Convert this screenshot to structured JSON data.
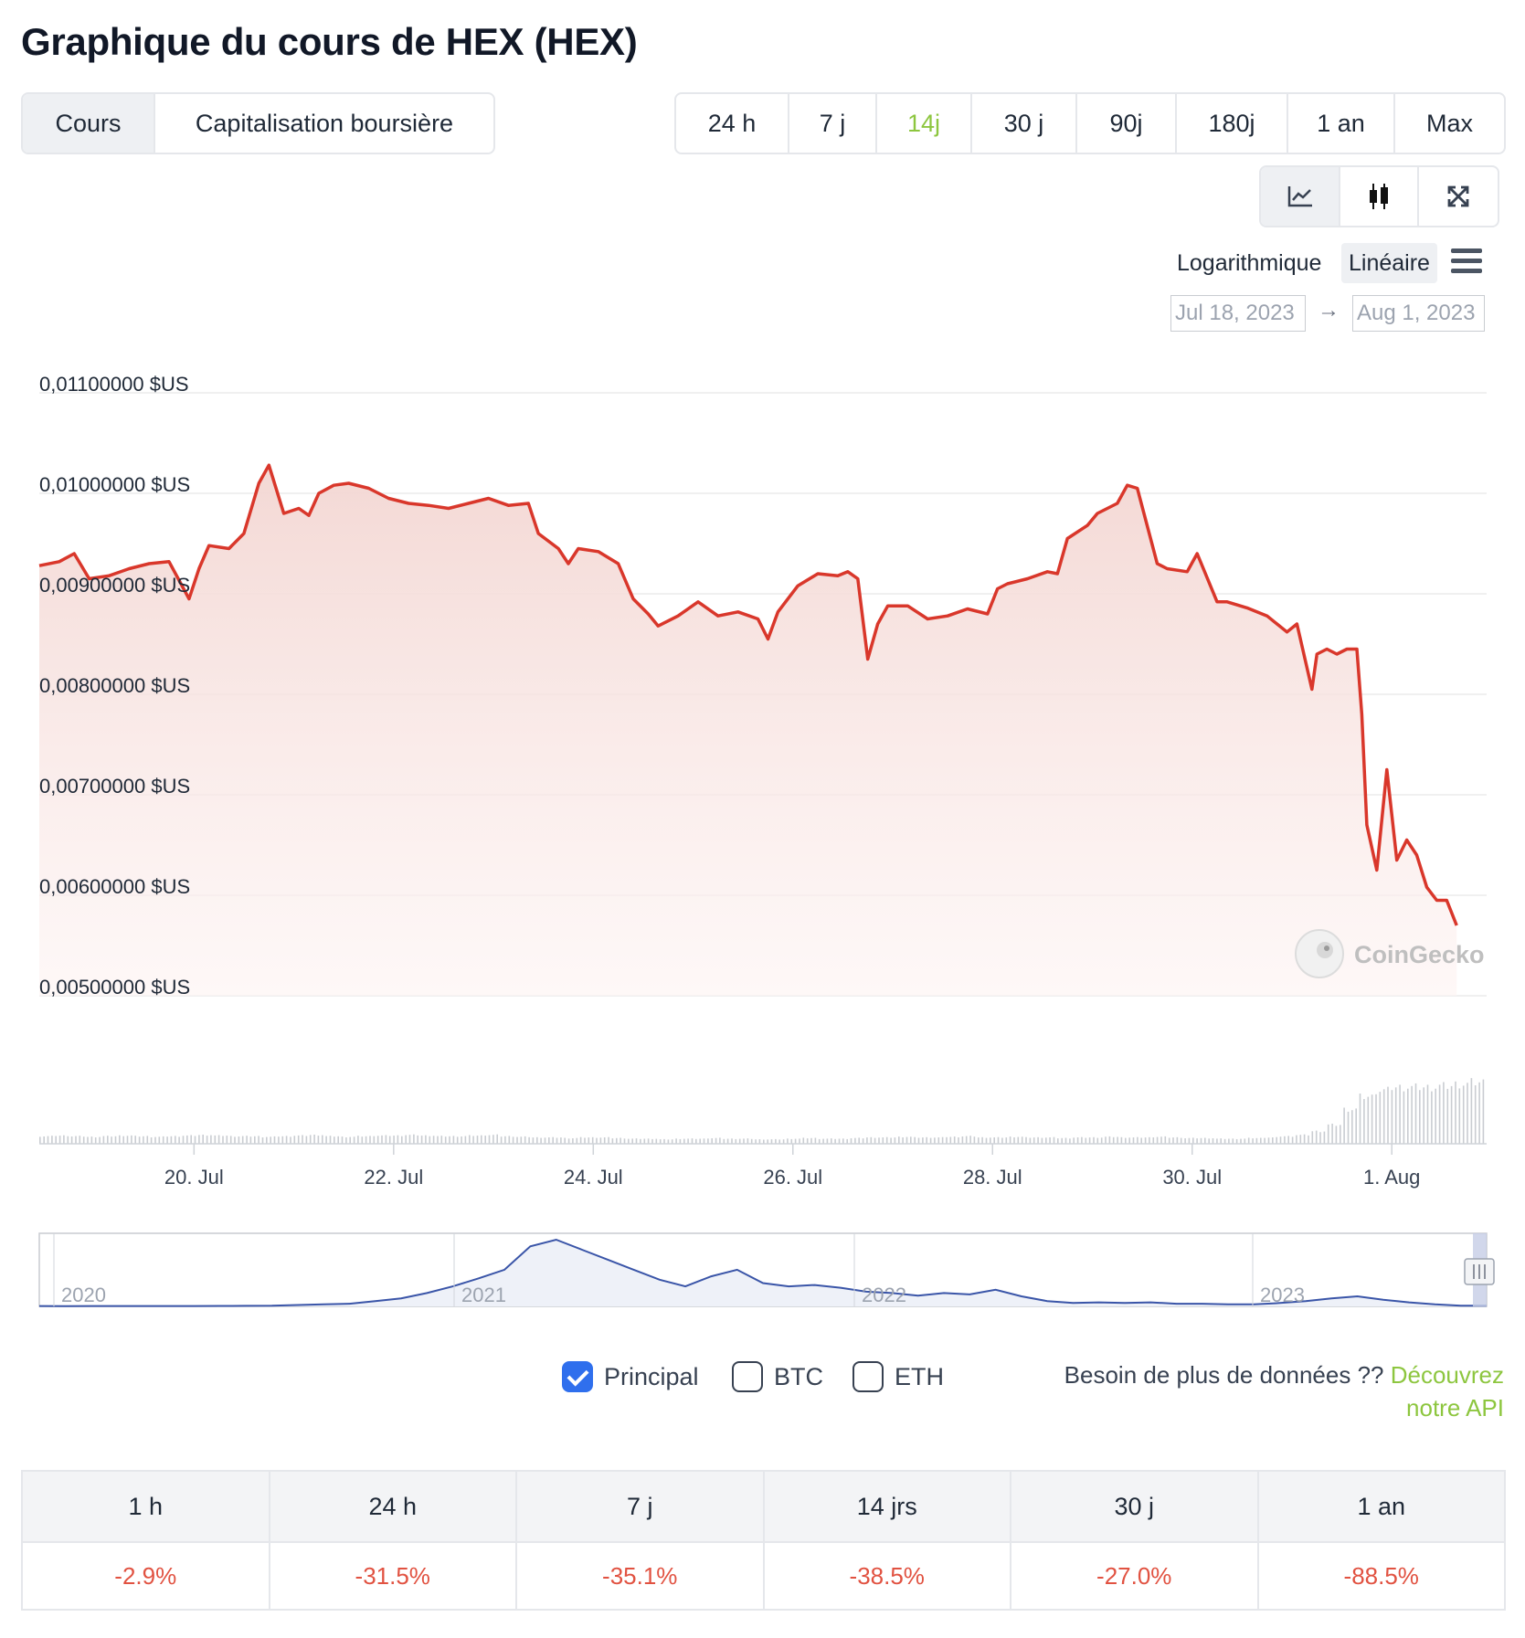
{
  "title": "Graphique du cours de HEX (HEX)",
  "metric_tabs": [
    {
      "label": "Cours",
      "active": true
    },
    {
      "label": "Capitalisation boursière",
      "active": false
    }
  ],
  "range_tabs": [
    {
      "label": "24 h",
      "active": false
    },
    {
      "label": "7 j",
      "active": false
    },
    {
      "label": "14j",
      "active": true
    },
    {
      "label": "30 j",
      "active": false
    },
    {
      "label": "90j",
      "active": false
    },
    {
      "label": "180j",
      "active": false
    },
    {
      "label": "1 an",
      "active": false
    },
    {
      "label": "Max",
      "active": false
    }
  ],
  "chart_types": [
    {
      "icon": "line-chart-icon",
      "active": true
    },
    {
      "icon": "candlestick-icon",
      "active": false
    },
    {
      "icon": "expand-icon",
      "active": false
    }
  ],
  "scale": {
    "log_label": "Logarithmique",
    "linear_label": "Linéaire",
    "selected": "linear"
  },
  "date_range": {
    "from": "Jul 18, 2023",
    "to": "Aug 1, 2023",
    "arrow": "→"
  },
  "watermark": "CoinGecko",
  "colors": {
    "line": "#d9372b",
    "area_top": "#f3d6d2",
    "accent_green": "#8dc63f",
    "negative": "#e15241",
    "navigator": "#3a55a8"
  },
  "chart_data": {
    "type": "line",
    "title": "Graphique du cours de HEX (HEX)",
    "y_tick_labels": [
      "0,01100000 $US",
      "0,01000000 $US",
      "0,00900000 $US",
      "0,00800000 $US",
      "0,00700000 $US",
      "0,00600000 $US",
      "0,00500000 $US"
    ],
    "y_ticks": [
      0.011,
      0.01,
      0.009,
      0.008,
      0.007,
      0.006,
      0.005
    ],
    "ylim": [
      0.005,
      0.011
    ],
    "x_range": [
      0,
      14.5
    ],
    "x_tick_labels": [
      "20. Jul",
      "22. Jul",
      "24. Jul",
      "26. Jul",
      "28. Jul",
      "30. Jul",
      "1. Aug"
    ],
    "x_ticks": [
      1.55,
      3.55,
      5.55,
      7.55,
      9.55,
      11.55,
      13.55
    ],
    "series": [
      {
        "x": [
          0,
          0.2,
          0.35,
          0.5,
          0.7,
          0.9,
          1.1,
          1.3,
          1.5,
          1.6,
          1.7,
          1.9,
          2.05,
          2.2,
          2.3,
          2.45,
          2.6,
          2.7,
          2.8,
          2.95,
          3.1,
          3.3,
          3.5,
          3.7,
          3.9,
          4.1,
          4.3,
          4.5,
          4.7,
          4.9,
          5.0,
          5.2,
          5.3,
          5.4,
          5.6,
          5.8,
          5.95,
          6.1,
          6.2,
          6.4,
          6.6,
          6.8,
          7.0,
          7.2,
          7.3,
          7.4,
          7.6,
          7.8,
          8.0,
          8.1,
          8.2,
          8.3,
          8.4,
          8.5,
          8.7,
          8.9,
          9.1,
          9.3,
          9.5,
          9.6,
          9.7,
          9.9,
          10.1,
          10.2,
          10.3,
          10.5,
          10.6,
          10.7,
          10.8,
          10.9,
          11.0,
          11.2,
          11.3,
          11.5,
          11.6,
          11.8,
          11.9,
          12.1,
          12.3,
          12.5,
          12.6,
          12.75,
          12.8,
          12.9,
          13.0,
          13.1,
          13.15,
          13.2,
          13.25,
          13.3,
          13.4,
          13.5,
          13.6,
          13.7,
          13.8,
          13.9,
          14.0,
          14.1,
          14.2
        ],
        "y": [
          0.00928,
          0.00932,
          0.0094,
          0.00915,
          0.00918,
          0.00925,
          0.0093,
          0.00932,
          0.00895,
          0.00925,
          0.00948,
          0.00945,
          0.0096,
          0.0101,
          0.01028,
          0.0098,
          0.00985,
          0.00978,
          0.01,
          0.01008,
          0.0101,
          0.01005,
          0.00995,
          0.0099,
          0.00988,
          0.00985,
          0.0099,
          0.00995,
          0.00988,
          0.0099,
          0.0096,
          0.00945,
          0.0093,
          0.00945,
          0.00942,
          0.0093,
          0.00895,
          0.0088,
          0.00868,
          0.00878,
          0.00892,
          0.00878,
          0.00882,
          0.00875,
          0.00855,
          0.00882,
          0.00908,
          0.0092,
          0.00918,
          0.00922,
          0.00915,
          0.00835,
          0.0087,
          0.00888,
          0.00888,
          0.00875,
          0.00878,
          0.00885,
          0.0088,
          0.00905,
          0.0091,
          0.00915,
          0.00922,
          0.0092,
          0.00955,
          0.00968,
          0.0098,
          0.00985,
          0.0099,
          0.01008,
          0.01005,
          0.0093,
          0.00925,
          0.00922,
          0.0094,
          0.00892,
          0.00892,
          0.00886,
          0.00878,
          0.00862,
          0.0087,
          0.00805,
          0.0084,
          0.00845,
          0.0084,
          0.00845,
          0.00845,
          0.00845,
          0.0078,
          0.0067,
          0.00625,
          0.00725,
          0.00635,
          0.00655,
          0.0064,
          0.00608,
          0.00595,
          0.00595,
          0.0057
        ]
      }
    ],
    "volume": {
      "relative": [
        0.12,
        0.13,
        0.12,
        0.11,
        0.12,
        0.13,
        0.12,
        0.11,
        0.12,
        0.13,
        0.14,
        0.13,
        0.12,
        0.12,
        0.11,
        0.12,
        0.13,
        0.14,
        0.12,
        0.11,
        0.12,
        0.13,
        0.13,
        0.14,
        0.13,
        0.12,
        0.12,
        0.13,
        0.14,
        0.12,
        0.11,
        0.1,
        0.1,
        0.09,
        0.1,
        0.1,
        0.09,
        0.08,
        0.08,
        0.07,
        0.08,
        0.08,
        0.09,
        0.08,
        0.08,
        0.07,
        0.07,
        0.08,
        0.09,
        0.08,
        0.08,
        0.09,
        0.1,
        0.1,
        0.11,
        0.1,
        0.1,
        0.11,
        0.12,
        0.1,
        0.1,
        0.11,
        0.1,
        0.1,
        0.09,
        0.1,
        0.1,
        0.11,
        0.1,
        0.1,
        0.11,
        0.1,
        0.09,
        0.09,
        0.08,
        0.08,
        0.09,
        0.1,
        0.12,
        0.14,
        0.2,
        0.3,
        0.55,
        0.75,
        0.85,
        0.9,
        0.9,
        0.9,
        0.92,
        0.95,
        0.98
      ]
    },
    "navigator": {
      "year_labels": [
        "2020",
        "2021",
        "2022",
        "2023"
      ],
      "y": [
        0.005,
        0.004,
        0.005,
        0.006,
        0.006,
        0.005,
        0.006,
        0.007,
        0.008,
        0.01,
        0.02,
        0.03,
        0.04,
        0.08,
        0.12,
        0.2,
        0.3,
        0.42,
        0.55,
        0.9,
        1.0,
        0.85,
        0.7,
        0.55,
        0.4,
        0.3,
        0.45,
        0.55,
        0.35,
        0.3,
        0.32,
        0.28,
        0.22,
        0.2,
        0.16,
        0.2,
        0.18,
        0.25,
        0.15,
        0.08,
        0.05,
        0.06,
        0.05,
        0.06,
        0.04,
        0.04,
        0.03,
        0.03,
        0.05,
        0.08,
        0.12,
        0.15,
        0.1,
        0.06,
        0.03,
        0.01,
        0.01
      ]
    }
  },
  "comparisons": [
    {
      "label": "Principal",
      "checked": true
    },
    {
      "label": "BTC",
      "checked": false
    },
    {
      "label": "ETH",
      "checked": false
    }
  ],
  "api": {
    "text": "Besoin de plus de données ?? ",
    "link": "Découvrez notre API"
  },
  "performance": {
    "headers": [
      "1 h",
      "24 h",
      "7 j",
      "14 jrs",
      "30 j",
      "1 an"
    ],
    "values": [
      "-2.9%",
      "-31.5%",
      "-35.1%",
      "-38.5%",
      "-27.0%",
      "-88.5%"
    ]
  }
}
